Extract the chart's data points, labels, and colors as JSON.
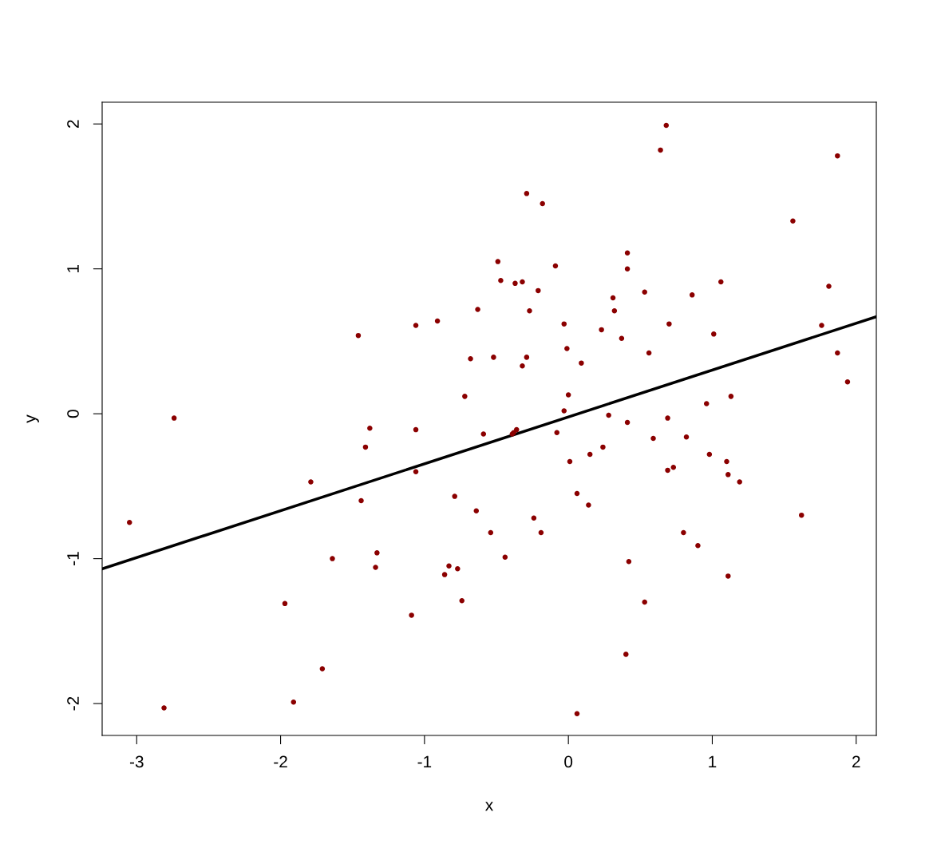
{
  "chart_data": {
    "type": "scatter",
    "xlabel": "x",
    "ylabel": "y",
    "xlim": [
      -3.24,
      2.14
    ],
    "ylim": [
      -2.22,
      2.15
    ],
    "xticks": [
      -3,
      -2,
      -1,
      0,
      1,
      2
    ],
    "yticks": [
      -2,
      -1,
      0,
      1,
      2
    ],
    "grid": false,
    "legend": false,
    "series": [
      {
        "color": "#8b0000",
        "marker": "circle",
        "x": [
          -3.05,
          -2.81,
          -2.74,
          -1.97,
          -1.91,
          -1.79,
          -1.71,
          -1.64,
          -1.46,
          -1.44,
          -1.41,
          -1.38,
          -1.34,
          -1.33,
          -1.09,
          -1.06,
          -1.06,
          -1.06,
          -0.91,
          -0.86,
          -0.83,
          -0.79,
          -0.77,
          -0.74,
          -0.72,
          -0.68,
          -0.64,
          -0.63,
          -0.59,
          -0.54,
          -0.52,
          -0.49,
          -0.47,
          -0.44,
          -0.39,
          -0.38,
          -0.37,
          -0.36,
          -0.32,
          -0.32,
          -0.29,
          -0.29,
          -0.27,
          -0.24,
          -0.21,
          -0.19,
          -0.18,
          -0.09,
          -0.08,
          -0.03,
          -0.03,
          -0.01,
          0,
          0.01,
          0.06,
          0.06,
          0.09,
          0.14,
          0.15,
          0.23,
          0.24,
          0.28,
          0.31,
          0.32,
          0.37,
          0.4,
          0.41,
          0.41,
          0.41,
          0.42,
          0.53,
          0.53,
          0.56,
          0.59,
          0.64,
          0.68,
          0.69,
          0.69,
          0.7,
          0.73,
          0.8,
          0.82,
          0.86,
          0.9,
          0.96,
          0.98,
          1.01,
          1.06,
          1.1,
          1.11,
          1.11,
          1.13,
          1.19,
          1.56,
          1.62,
          1.76,
          1.81,
          1.87,
          1.87,
          1.94
        ],
        "values": [
          -0.75,
          -2.03,
          -0.03,
          -1.31,
          -1.99,
          -0.47,
          -1.76,
          -1.0,
          0.54,
          -0.6,
          -0.23,
          -0.1,
          -1.06,
          -0.96,
          -1.39,
          0.61,
          -0.11,
          -0.4,
          0.64,
          -1.11,
          -1.05,
          -0.57,
          -1.07,
          -1.29,
          0.12,
          0.38,
          -0.67,
          0.72,
          -0.14,
          -0.82,
          0.39,
          1.05,
          0.92,
          -0.99,
          -0.14,
          -0.13,
          0.9,
          -0.11,
          0.91,
          0.33,
          0.39,
          1.52,
          0.71,
          -0.72,
          0.85,
          -0.82,
          1.45,
          1.02,
          -0.13,
          0.02,
          0.62,
          0.45,
          0.13,
          -0.33,
          -0.55,
          -2.07,
          0.35,
          -0.63,
          -0.28,
          0.58,
          -0.23,
          -0.01,
          0.8,
          0.71,
          0.52,
          -1.66,
          1.0,
          1.11,
          -0.06,
          -1.02,
          -1.3,
          0.84,
          0.42,
          -0.17,
          1.82,
          1.99,
          -0.03,
          -0.39,
          0.62,
          -0.37,
          -0.82,
          -0.16,
          0.82,
          -0.91,
          0.07,
          -0.28,
          0.55,
          0.91,
          -0.33,
          -0.42,
          -1.12,
          0.12,
          -0.47,
          1.33,
          -0.7,
          0.61,
          0.88,
          1.78,
          0.42,
          0.22
        ]
      },
      {
        "type": "line",
        "color": "#000000",
        "line_style": "solid",
        "x": [
          -3.24,
          2.14
        ],
        "values": [
          -1.07,
          0.67
        ]
      }
    ]
  }
}
